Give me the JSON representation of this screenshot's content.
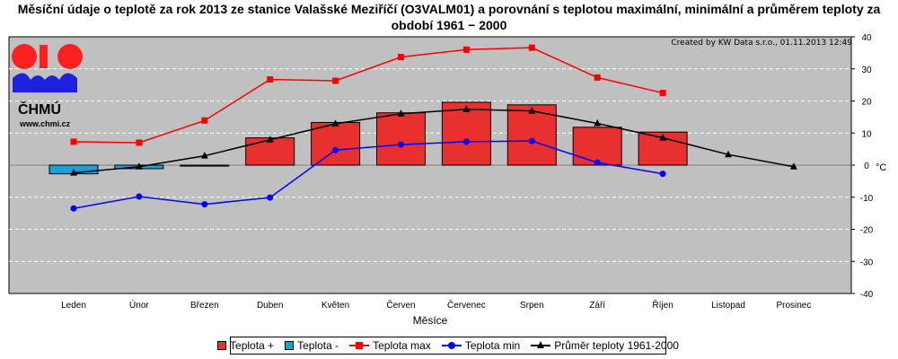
{
  "title": "Měsíční údaje o teplotě za rok 2013 ze stanice Valašské Meziříčí (O3VALM01) a porovnání s teplotou maximální, minimální a průměrem teploty za období 1961 − 2000",
  "logo": {
    "name": "ČHMÚ",
    "url": "www.chmi.cz"
  },
  "created": "Created by KW Data s.r.o., 01.11.2013 12:49",
  "chart_data": {
    "type": "bar",
    "xlabel": "Měsíce",
    "ylabel": "°C",
    "ylim": [
      -40,
      40
    ],
    "yticks": [
      40,
      30,
      20,
      10,
      0,
      -10,
      -20,
      -30,
      -40
    ],
    "grid": true,
    "legend_position": "bottom",
    "categories": [
      "Leden",
      "Únor",
      "Březen",
      "Duben",
      "Květen",
      "Červen",
      "Červenec",
      "Srpen",
      "Září",
      "Říjen",
      "Listopad",
      "Prosinec"
    ],
    "series": [
      {
        "name": "Teplota +",
        "kind": "bar",
        "color": "#e8312f",
        "values": [
          null,
          null,
          null,
          8.5,
          13.3,
          16.3,
          19.6,
          18.8,
          11.8,
          10.3,
          null,
          null
        ]
      },
      {
        "name": "Teplota -",
        "kind": "bar",
        "color": "#1e9fd8",
        "values": [
          -2.7,
          -1.1,
          -0.3,
          null,
          null,
          null,
          null,
          null,
          null,
          null,
          null,
          null
        ]
      },
      {
        "name": "Teplota max",
        "kind": "line",
        "marker": "square",
        "color": "#ff0000",
        "values": [
          7.3,
          7.0,
          13.9,
          26.7,
          26.3,
          33.7,
          36.0,
          36.6,
          27.3,
          22.5,
          null,
          null
        ]
      },
      {
        "name": "Teplota min",
        "kind": "line",
        "marker": "circle",
        "color": "#0000ff",
        "values": [
          -13.5,
          -9.8,
          -12.2,
          -10.1,
          4.7,
          6.4,
          7.3,
          7.5,
          0.8,
          -2.7,
          null,
          null
        ]
      },
      {
        "name": "Průměr teploty 1961-2000",
        "kind": "line",
        "marker": "triangle",
        "color": "#000000",
        "values": [
          -2.4,
          -0.5,
          2.9,
          7.9,
          12.9,
          16.0,
          17.4,
          16.9,
          13.0,
          8.5,
          3.3,
          -0.5
        ]
      }
    ]
  }
}
